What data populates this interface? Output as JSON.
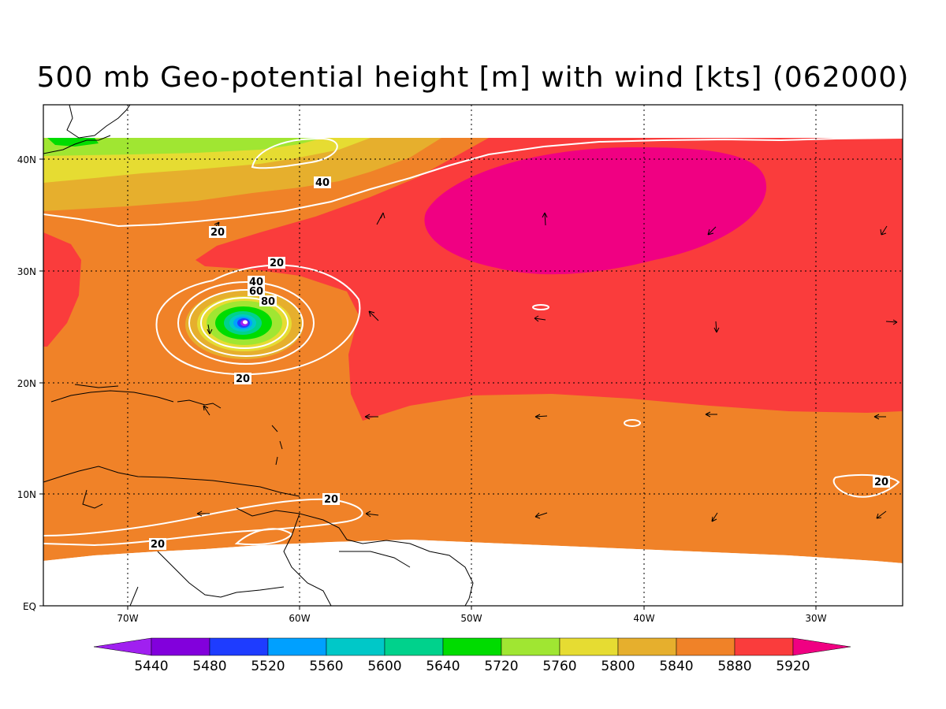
{
  "title": "500 mb Geo-potential height [m] with wind [kts] (062000)",
  "lat_labels": [
    "40N",
    "30N",
    "20N",
    "10N",
    "EQ"
  ],
  "lon_labels": [
    "70W",
    "60W",
    "50W",
    "40W",
    "30W"
  ],
  "colorbar": {
    "labels": [
      "5440",
      "5480",
      "5520",
      "5560",
      "5600",
      "5640",
      "5720",
      "5760",
      "5800",
      "5840",
      "5880",
      "5920"
    ],
    "colors": [
      "#a020f0",
      "#8200dc",
      "#1e3cff",
      "#00a0ff",
      "#00c8c8",
      "#00d28c",
      "#00dc00",
      "#a0e632",
      "#e6dc32",
      "#e6af2d",
      "#f08228",
      "#fa3c3c",
      "#f00082"
    ]
  },
  "contour_labels": [
    "40",
    "20",
    "20",
    "40",
    "60",
    "80",
    "20",
    "20",
    "20",
    "20"
  ]
}
